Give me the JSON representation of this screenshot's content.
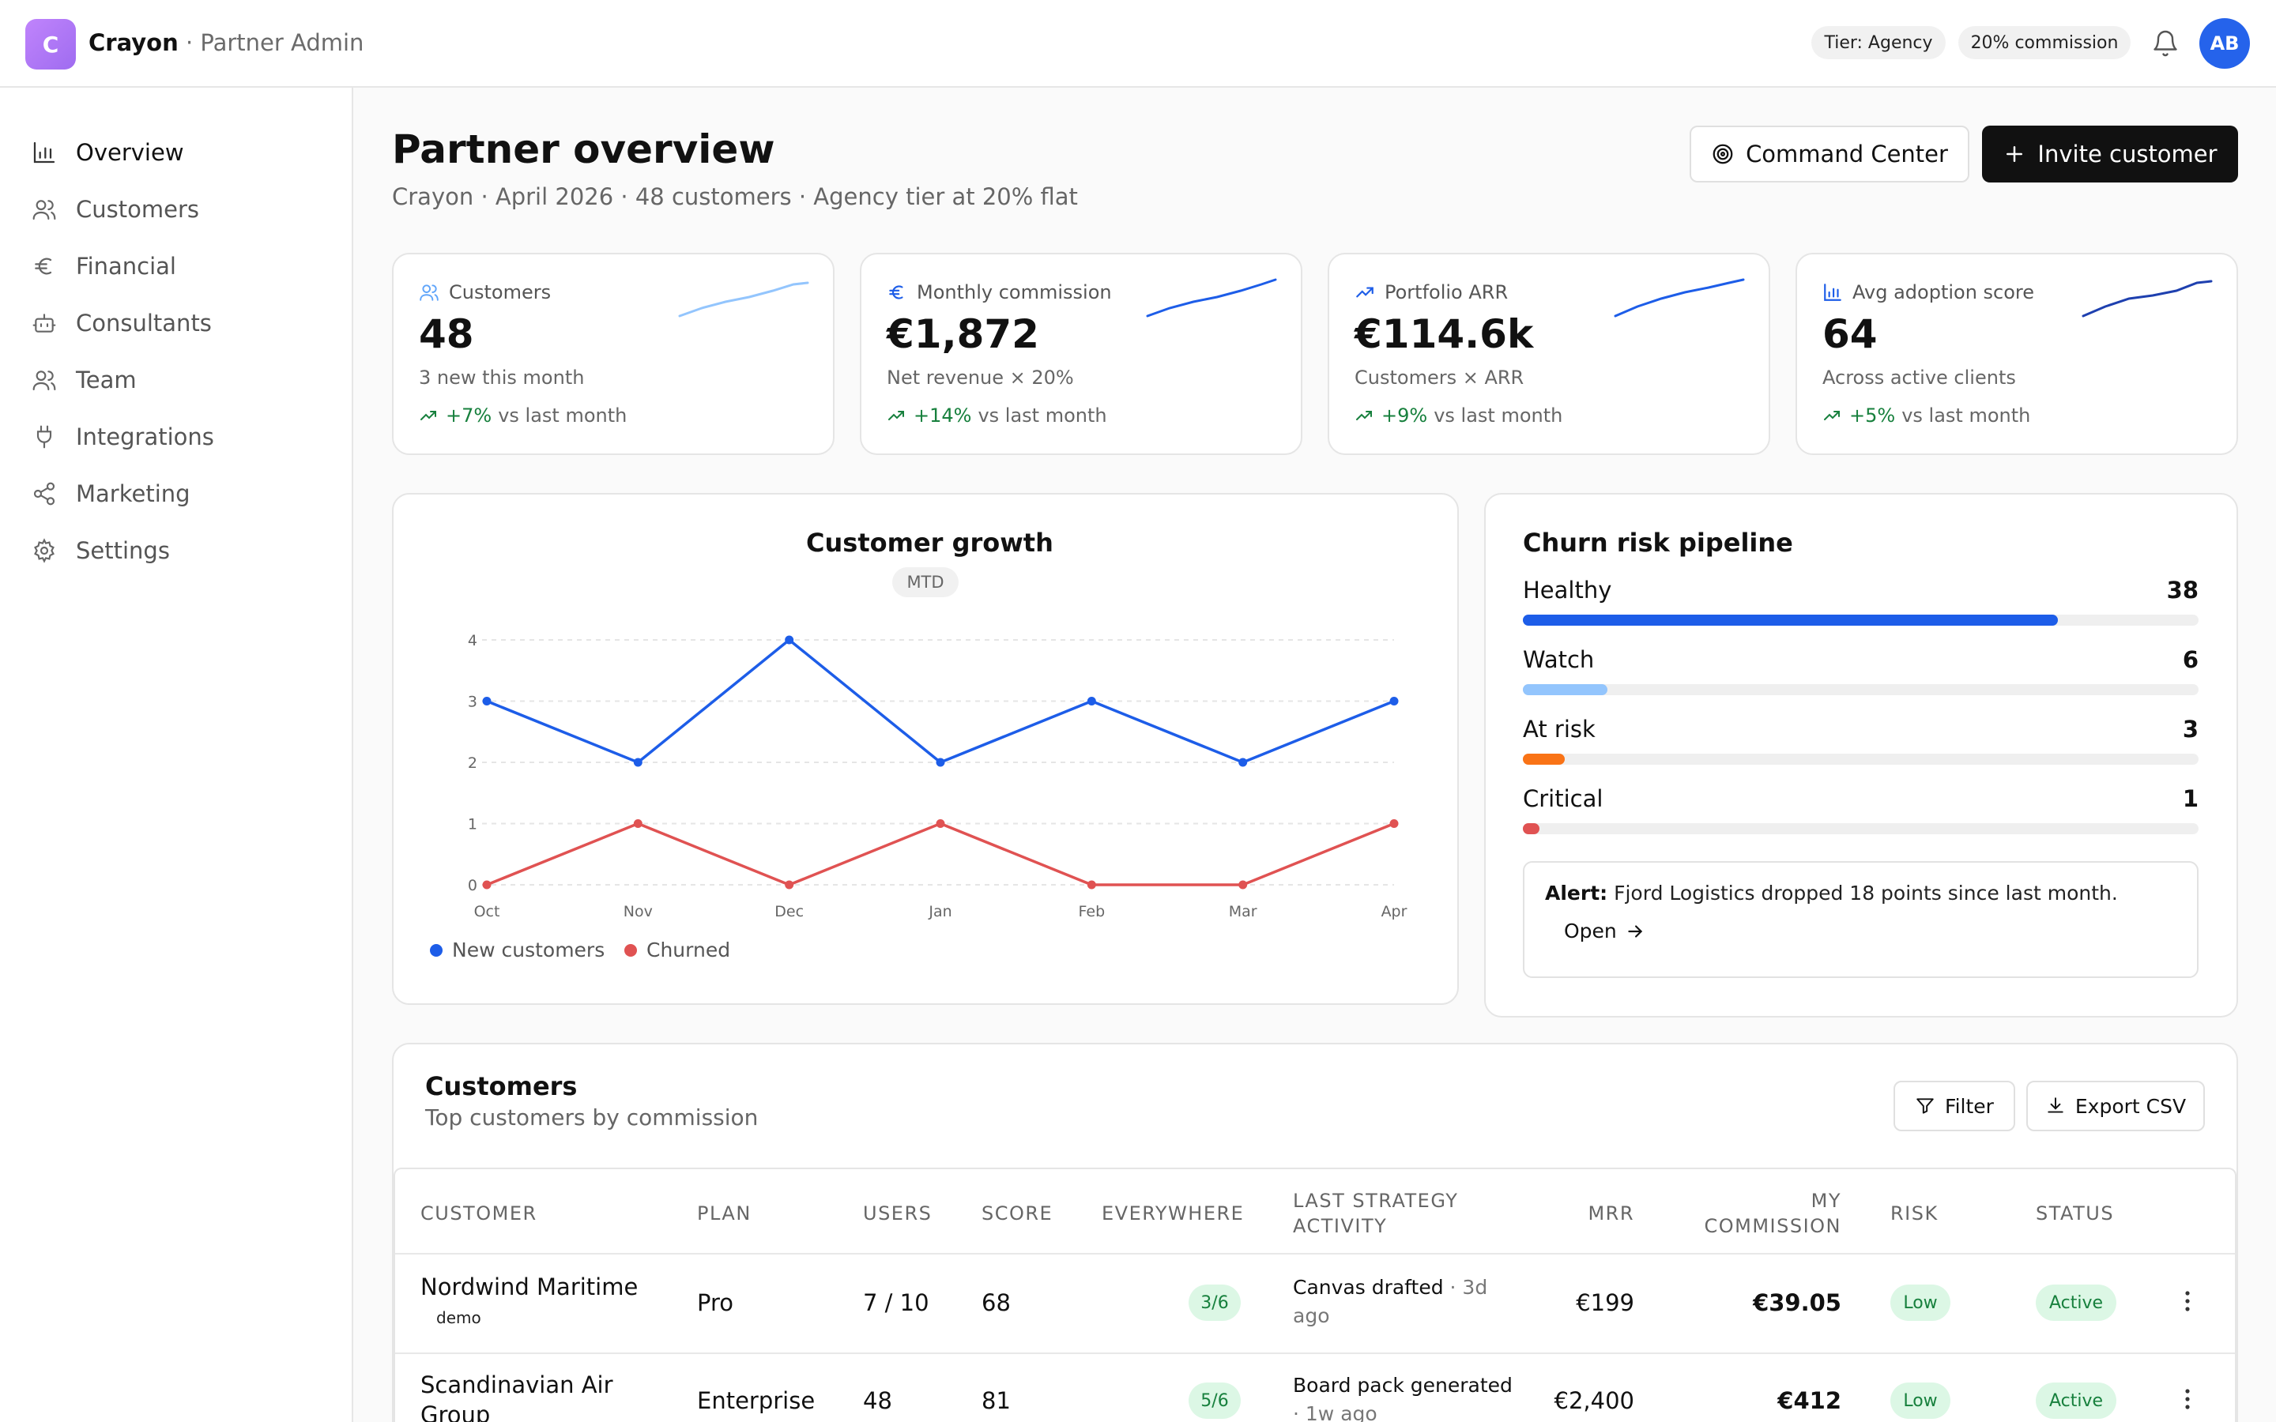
{
  "app": {
    "logo_letter": "C",
    "name": "Crayon",
    "section": " · Partner Admin",
    "tier_pill": "Tier: Agency",
    "commission_pill": "20% commission",
    "avatar_initials": "AB"
  },
  "sidebar": {
    "items": [
      {
        "label": "Overview",
        "icon": "bar-chart-icon",
        "active": true
      },
      {
        "label": "Customers",
        "icon": "users-icon"
      },
      {
        "label": "Financial",
        "icon": "euro-icon"
      },
      {
        "label": "Consultants",
        "icon": "robot-icon"
      },
      {
        "label": "Team",
        "icon": "users-icon"
      },
      {
        "label": "Integrations",
        "icon": "plug-icon"
      },
      {
        "label": "Marketing",
        "icon": "share-icon"
      },
      {
        "label": "Settings",
        "icon": "gear-icon"
      }
    ]
  },
  "header": {
    "title": "Partner overview",
    "subtitle": "Crayon · April 2026 · 48 customers · Agency tier at 20% flat",
    "command_center_label": "Command Center",
    "invite_label": "Invite customer"
  },
  "kpis": [
    {
      "label": "Customers",
      "value": "48",
      "desc": "3 new this month",
      "delta": "+7%",
      "delta_suffix": "vs last month",
      "icon": "users-icon"
    },
    {
      "label": "Monthly commission",
      "value": "€1,872",
      "desc": "Net revenue × 20%",
      "delta": "+14%",
      "delta_suffix": "vs last month",
      "icon": "euro-icon"
    },
    {
      "label": "Portfolio ARR",
      "value": "€114.6k",
      "desc": "Customers × ARR",
      "delta": "+9%",
      "delta_suffix": "vs last month",
      "icon": "trend-up-icon"
    },
    {
      "label": "Avg adoption score",
      "value": "64",
      "desc": "Across active clients",
      "delta": "+5%",
      "delta_suffix": "vs last month",
      "icon": "bar-chart-icon"
    }
  ],
  "growth": {
    "title": "Customer growth",
    "badge": "MTD",
    "legend_new": "New customers",
    "legend_churned": "Churned"
  },
  "chart_data": {
    "type": "line",
    "title": "Customer growth",
    "x": [
      "Oct",
      "Nov",
      "Dec",
      "Jan",
      "Feb",
      "Mar",
      "Apr"
    ],
    "series": [
      {
        "name": "New customers",
        "values": [
          3,
          2,
          4,
          2,
          3,
          2,
          3
        ],
        "color": "#1d5de8"
      },
      {
        "name": "Churned",
        "values": [
          0,
          1,
          0,
          1,
          0,
          0,
          1
        ],
        "color": "#e05252"
      }
    ],
    "ylim": [
      0,
      4
    ],
    "yticks": [
      0,
      1,
      2,
      3,
      4
    ],
    "grid": true,
    "legend": "bottom-left"
  },
  "churn": {
    "title": "Churn risk pipeline",
    "total": 48,
    "rows": [
      {
        "label": "Healthy",
        "count": "38",
        "value": 38,
        "color": "#1d5de8"
      },
      {
        "label": "Watch",
        "count": "6",
        "value": 6,
        "color": "#93c5fd"
      },
      {
        "label": "At risk",
        "count": "3",
        "value": 3,
        "color": "#f97316"
      },
      {
        "label": "Critical",
        "count": "1",
        "value": 1,
        "color": "#e05252"
      }
    ],
    "alert_label": "Alert:",
    "alert_text": " Fjord Logistics dropped 18 points since last month.",
    "alert_action": "Open"
  },
  "customers_table": {
    "title": "Customers",
    "subtitle": "Top customers by commission",
    "filter_label": "Filter",
    "export_label": "Export CSV",
    "columns": [
      "CUSTOMER",
      "PLAN",
      "USERS",
      "SCORE",
      "EVERYWHERE",
      "LAST STRATEGY ACTIVITY",
      "MRR",
      "MY COMMISSION",
      "RISK",
      "STATUS"
    ],
    "rows": [
      {
        "customer": "Nordwind Maritime",
        "tag": "demo",
        "plan": "Pro",
        "users": "7 / 10",
        "score": "68",
        "everywhere": "3/6",
        "activity": "Canvas drafted",
        "activity_time": " · 3d ago",
        "mrr": "€199",
        "commission": "€39.05",
        "risk": "Low",
        "status": "Active"
      },
      {
        "customer": "Scandinavian Air Group",
        "tag": "",
        "plan": "Enterprise",
        "users": "48",
        "score": "81",
        "everywhere": "5/6",
        "activity": "Board pack generated",
        "activity_time": " · 1w ago",
        "mrr": "€2,400",
        "commission": "€412",
        "risk": "Low",
        "status": "Active"
      }
    ]
  }
}
